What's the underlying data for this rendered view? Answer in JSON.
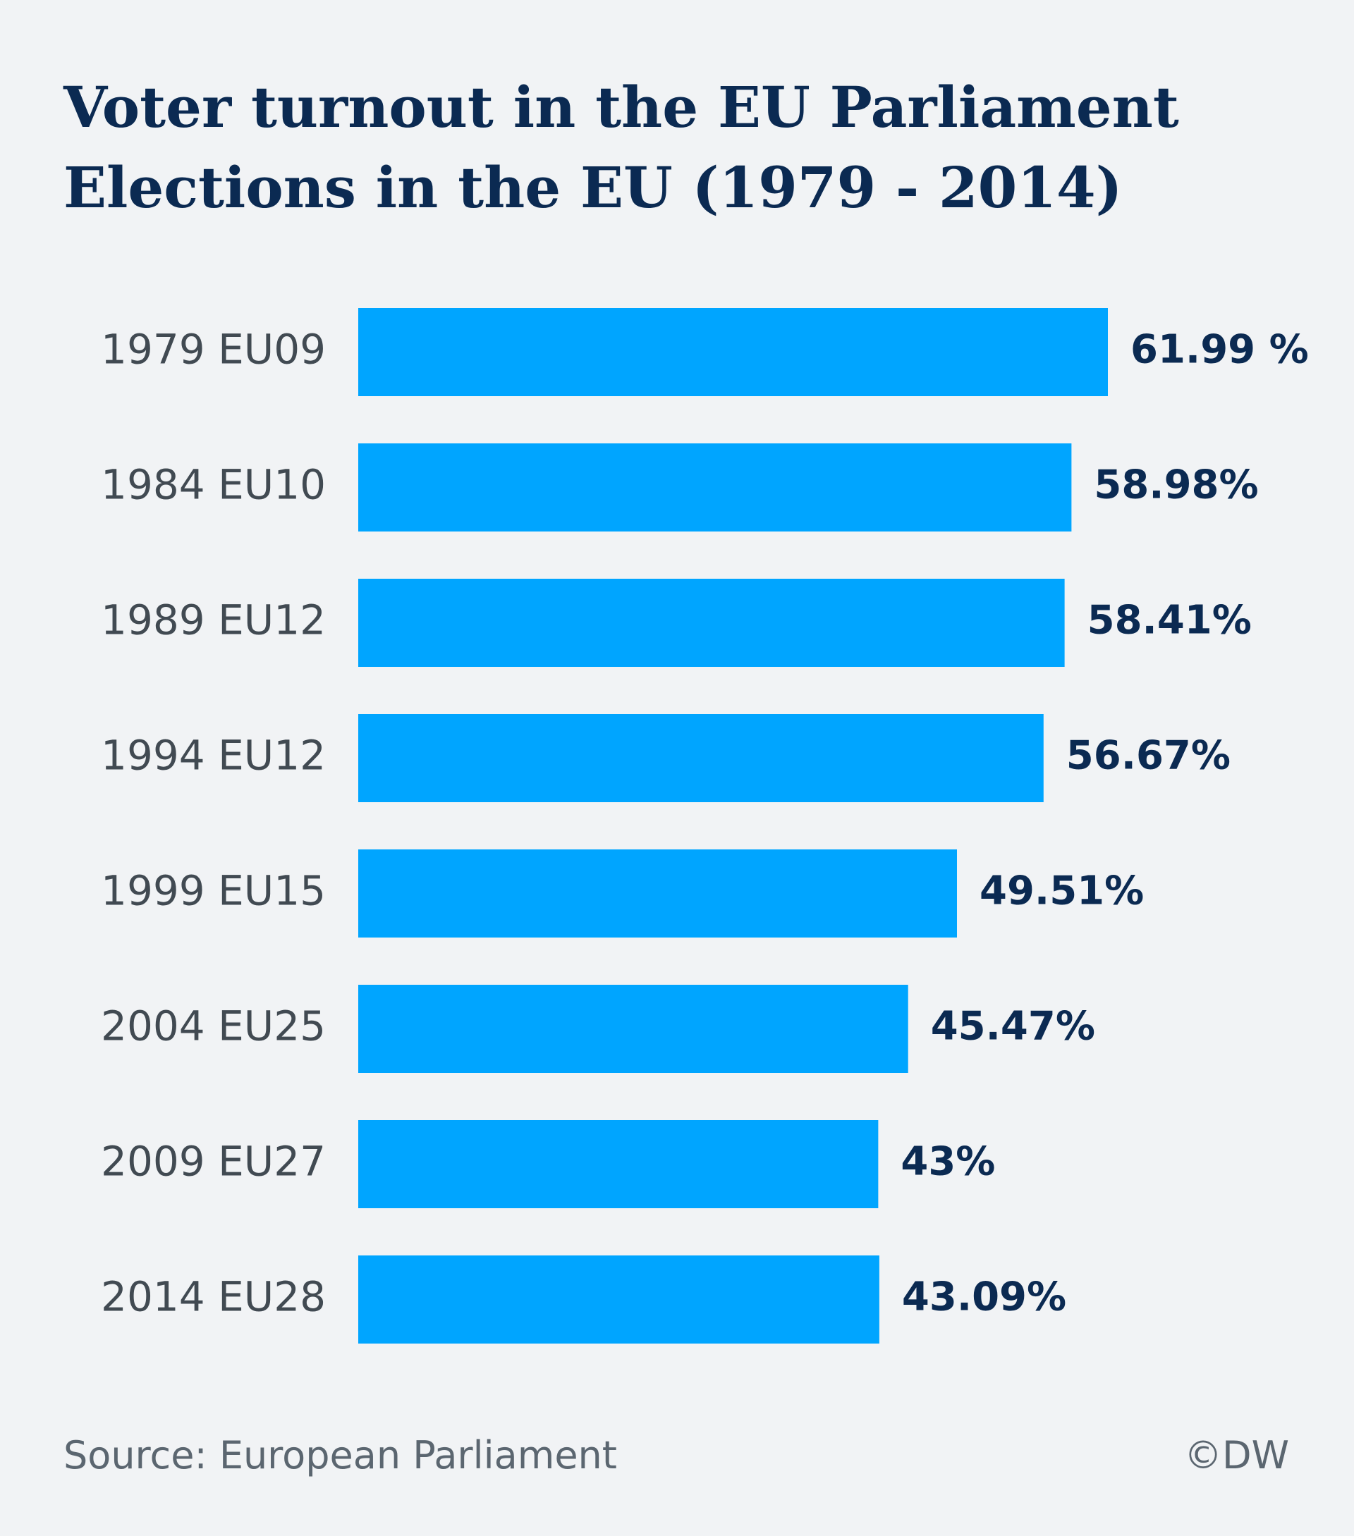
{
  "header": {
    "title_line1": "Voter turnout in the EU Parliament",
    "title_line2": "Elections in the EU (1979 - 2014)"
  },
  "chart_data": {
    "type": "bar",
    "orientation": "horizontal",
    "categories": [
      "1979 EU09",
      "1984 EU10",
      "1989 EU12",
      "1994 EU12",
      "1999 EU15",
      "2004 EU25",
      "2009 EU27",
      "2014 EU28"
    ],
    "values": [
      61.99,
      58.98,
      58.41,
      56.67,
      49.51,
      45.47,
      43,
      43.09
    ],
    "value_labels": [
      "61.99 %",
      "58.98%",
      "58.41%",
      "56.67%",
      "49.51%",
      "45.47%",
      "43%",
      "43.09%"
    ],
    "title": "Voter turnout in the EU Parliament Elections in the EU (1979 - 2014)",
    "xlabel": "",
    "ylabel": "",
    "unit": "%",
    "grid": false,
    "bar_color": "#00a5ff",
    "label_color": "#0b2a52",
    "category_color": "#414a52"
  },
  "footer": {
    "source": "Source: European Parliament",
    "copyright": "©DW"
  }
}
